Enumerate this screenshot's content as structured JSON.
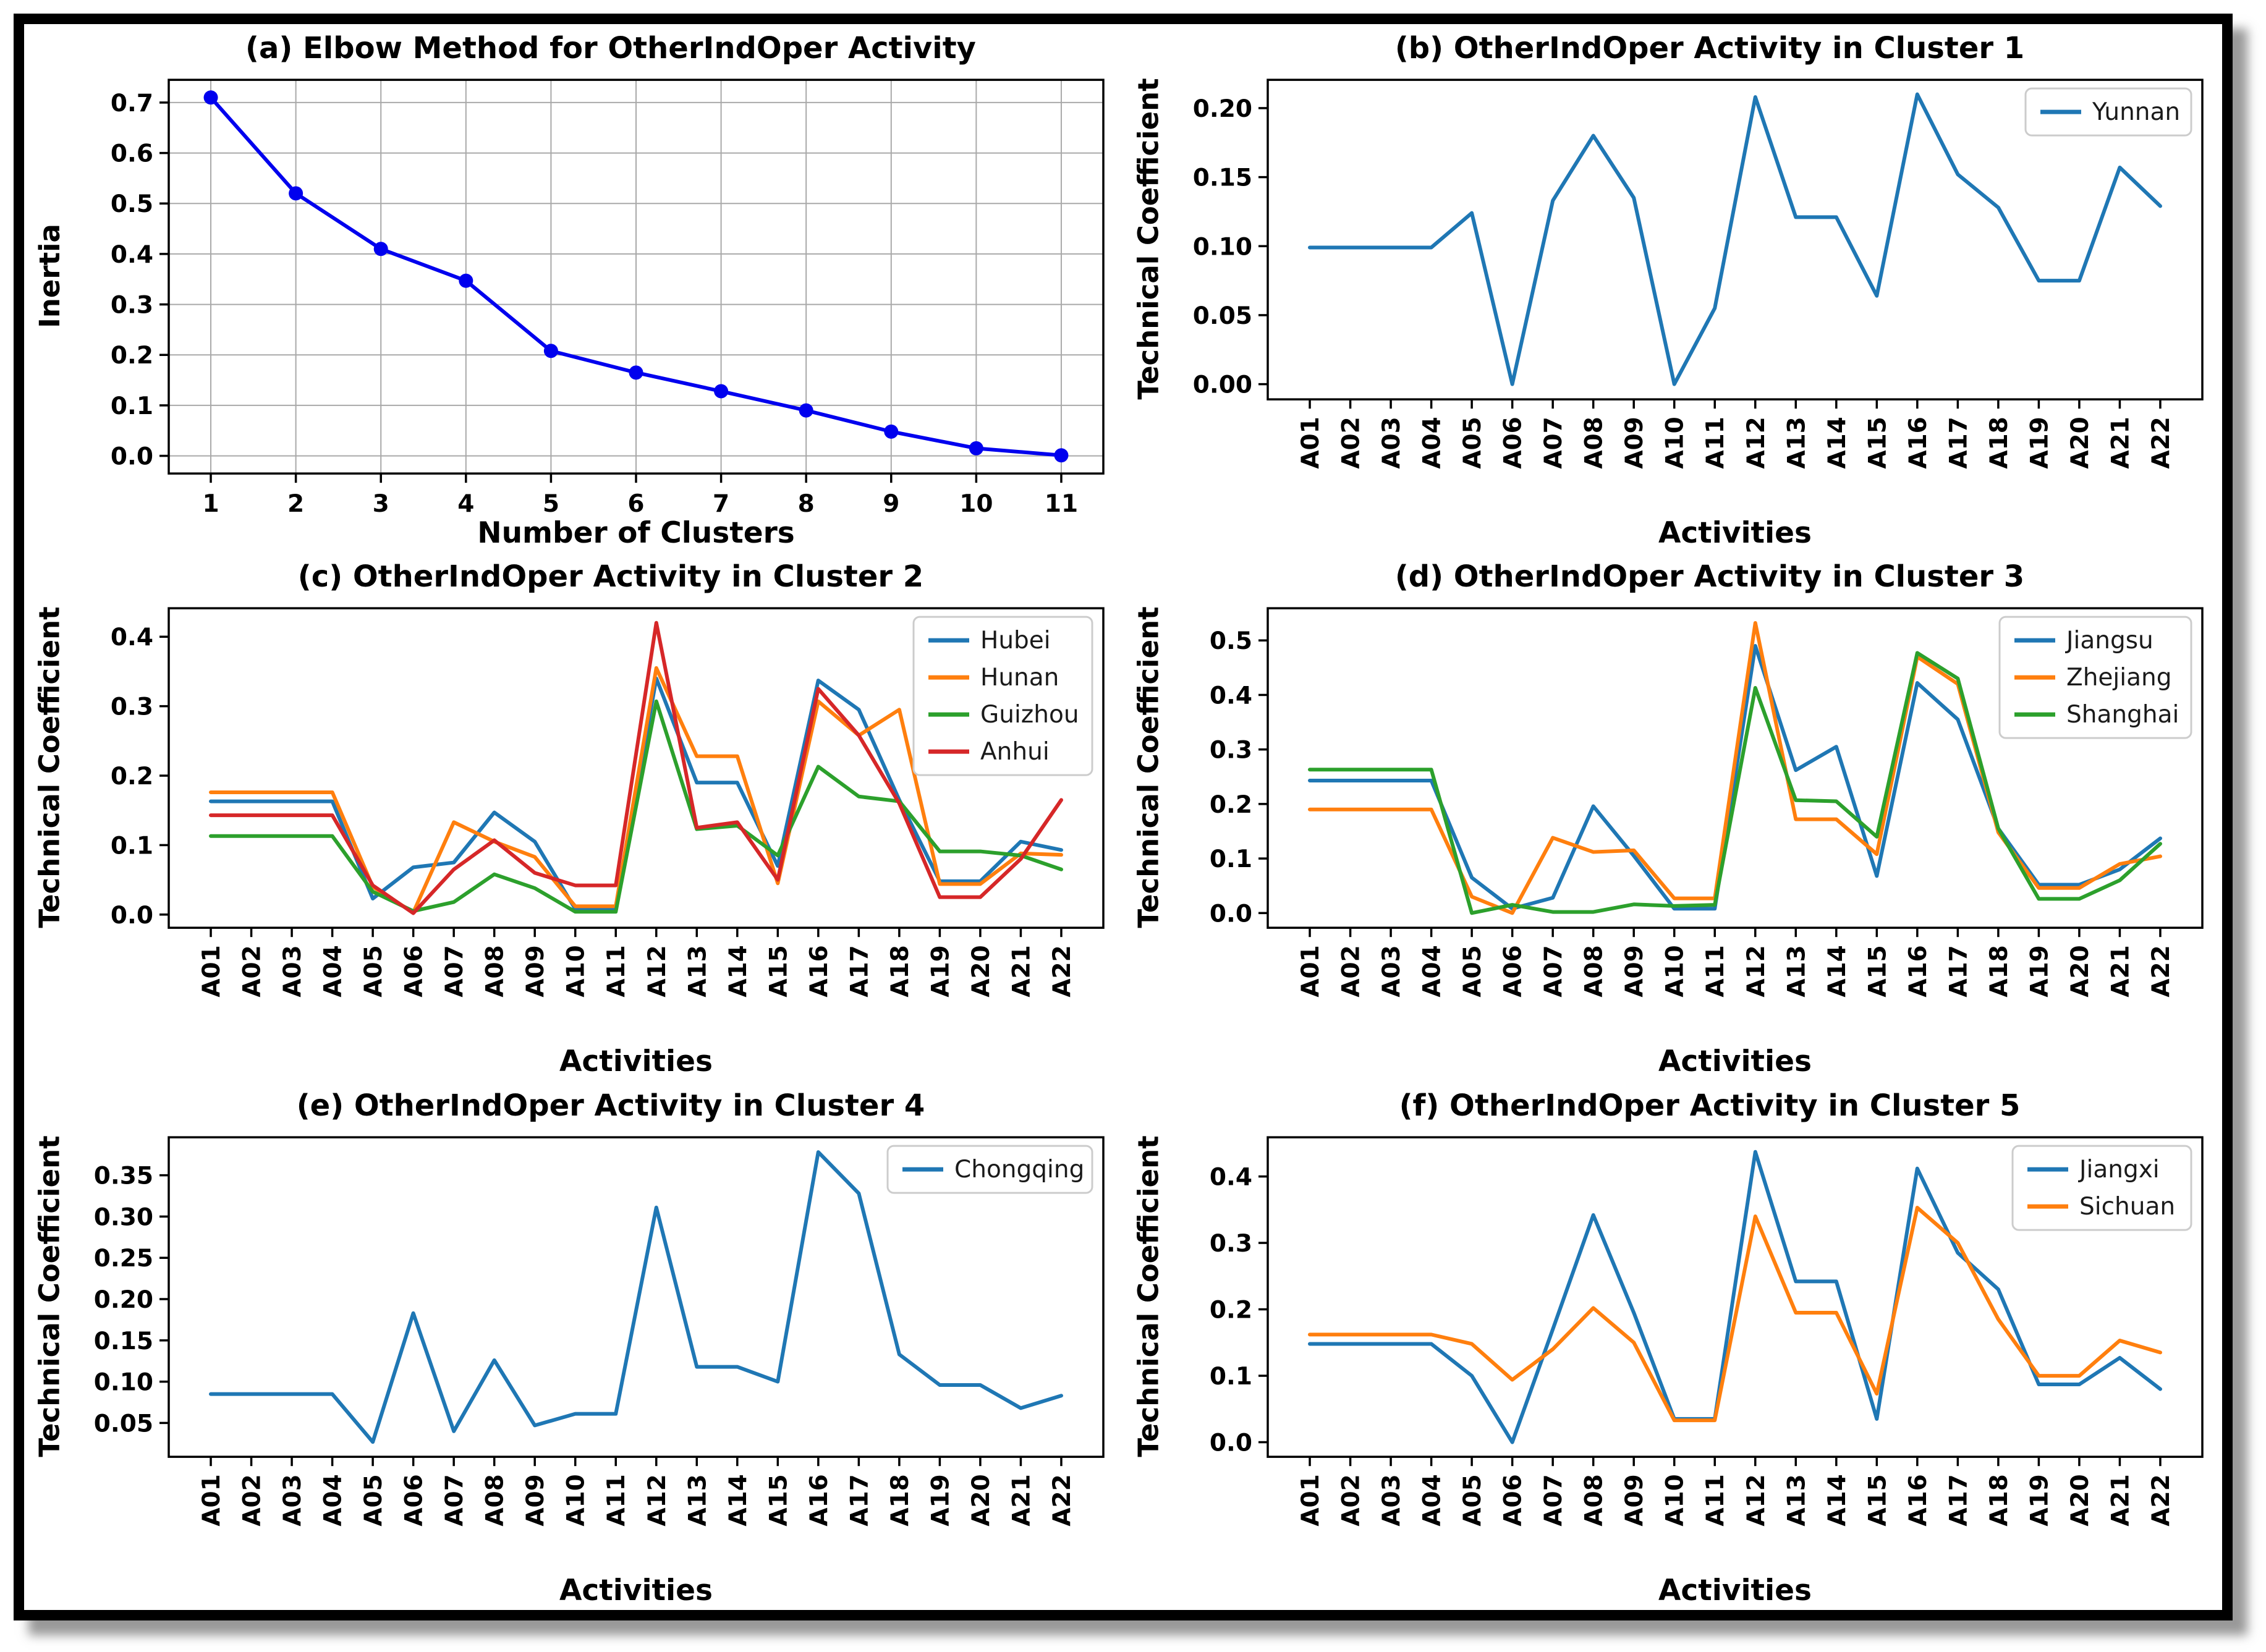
{
  "figure": {
    "description": "Six-panel cluster analysis figure",
    "border_color": "#000000",
    "background": "#ffffff"
  },
  "chart_data": [
    {
      "id": "a",
      "type": "line",
      "title": "(a) Elbow Method for OtherIndOper Activity",
      "xlabel": "Number of Clusters",
      "ylabel": "Inertia",
      "x": [
        "1",
        "2",
        "3",
        "4",
        "5",
        "6",
        "7",
        "8",
        "9",
        "10",
        "11"
      ],
      "xtick_rotate": false,
      "grid": true,
      "marker": true,
      "legend": false,
      "ylim": [
        -0.035,
        0.745
      ],
      "yticks": [
        0.0,
        0.1,
        0.2,
        0.3,
        0.4,
        0.5,
        0.6,
        0.7
      ],
      "ytick_labels": [
        "0.0",
        "0.1",
        "0.2",
        "0.3",
        "0.4",
        "0.5",
        "0.6",
        "0.7"
      ],
      "series": [
        {
          "name": "Inertia",
          "color": "#0000ee",
          "values": [
            0.71,
            0.52,
            0.41,
            0.347,
            0.208,
            0.165,
            0.128,
            0.09,
            0.048,
            0.015,
            0.001
          ]
        }
      ]
    },
    {
      "id": "b",
      "type": "line",
      "title": "(b) OtherIndOper Activity in Cluster 1",
      "xlabel": "Activities",
      "ylabel": "Technical Coefficient",
      "x": [
        "A01",
        "A02",
        "A03",
        "A04",
        "A05",
        "A06",
        "A07",
        "A08",
        "A09",
        "A10",
        "A11",
        "A12",
        "A13",
        "A14",
        "A15",
        "A16",
        "A17",
        "A18",
        "A19",
        "A20",
        "A21",
        "A22"
      ],
      "xtick_rotate": true,
      "grid": false,
      "marker": false,
      "legend": true,
      "ylim": [
        -0.011,
        0.2205
      ],
      "yticks": [
        0.0,
        0.05,
        0.1,
        0.15,
        0.2
      ],
      "ytick_labels": [
        "0.00",
        "0.05",
        "0.10",
        "0.15",
        "0.20"
      ],
      "series": [
        {
          "name": "Yunnan",
          "color": "#1f77b4",
          "values": [
            0.099,
            0.099,
            0.099,
            0.099,
            0.124,
            0.0,
            0.133,
            0.18,
            0.135,
            0.0,
            0.055,
            0.208,
            0.121,
            0.121,
            0.064,
            0.21,
            0.152,
            0.128,
            0.075,
            0.075,
            0.157,
            0.129
          ]
        }
      ]
    },
    {
      "id": "c",
      "type": "line",
      "title": "(c) OtherIndOper Activity in Cluster 2",
      "xlabel": "Activities",
      "ylabel": "Technical Coefficient",
      "x": [
        "A01",
        "A02",
        "A03",
        "A04",
        "A05",
        "A06",
        "A07",
        "A08",
        "A09",
        "A10",
        "A11",
        "A12",
        "A13",
        "A14",
        "A15",
        "A16",
        "A17",
        "A18",
        "A19",
        "A20",
        "A21",
        "A22"
      ],
      "xtick_rotate": true,
      "grid": false,
      "marker": false,
      "legend": true,
      "ylim": [
        -0.019,
        0.441
      ],
      "yticks": [
        0.0,
        0.1,
        0.2,
        0.3,
        0.4
      ],
      "ytick_labels": [
        "0.0",
        "0.1",
        "0.2",
        "0.3",
        "0.4"
      ],
      "series": [
        {
          "name": "Hubei",
          "color": "#1f77b4",
          "values": [
            0.163,
            0.163,
            0.163,
            0.163,
            0.023,
            0.068,
            0.075,
            0.147,
            0.105,
            0.008,
            0.008,
            0.34,
            0.19,
            0.19,
            0.07,
            0.337,
            0.295,
            0.165,
            0.048,
            0.048,
            0.105,
            0.093
          ]
        },
        {
          "name": "Hunan",
          "color": "#ff7f0e",
          "values": [
            0.176,
            0.176,
            0.176,
            0.176,
            0.04,
            0.003,
            0.133,
            0.105,
            0.083,
            0.012,
            0.012,
            0.355,
            0.228,
            0.228,
            0.045,
            0.307,
            0.258,
            0.295,
            0.044,
            0.044,
            0.088,
            0.086
          ]
        },
        {
          "name": "Guizhou",
          "color": "#2ca02c",
          "values": [
            0.113,
            0.113,
            0.113,
            0.113,
            0.033,
            0.005,
            0.018,
            0.058,
            0.038,
            0.004,
            0.004,
            0.307,
            0.123,
            0.128,
            0.085,
            0.213,
            0.17,
            0.163,
            0.091,
            0.091,
            0.085,
            0.065
          ]
        },
        {
          "name": "Anhui",
          "color": "#d62728",
          "values": [
            0.143,
            0.143,
            0.143,
            0.143,
            0.042,
            0.002,
            0.065,
            0.107,
            0.06,
            0.042,
            0.042,
            0.42,
            0.125,
            0.133,
            0.05,
            0.325,
            0.258,
            0.16,
            0.025,
            0.025,
            0.08,
            0.165
          ]
        }
      ]
    },
    {
      "id": "d",
      "type": "line",
      "title": "(d) OtherIndOper Activity in Cluster 3",
      "xlabel": "Activities",
      "ylabel": "Technical Coefficient",
      "x": [
        "A01",
        "A02",
        "A03",
        "A04",
        "A05",
        "A06",
        "A07",
        "A08",
        "A09",
        "A10",
        "A11",
        "A12",
        "A13",
        "A14",
        "A15",
        "A16",
        "A17",
        "A18",
        "A19",
        "A20",
        "A21",
        "A22"
      ],
      "xtick_rotate": true,
      "grid": false,
      "marker": false,
      "legend": true,
      "ylim": [
        -0.027,
        0.559
      ],
      "yticks": [
        0.0,
        0.1,
        0.2,
        0.3,
        0.4,
        0.5
      ],
      "ytick_labels": [
        "0.0",
        "0.1",
        "0.2",
        "0.3",
        "0.4",
        "0.5"
      ],
      "series": [
        {
          "name": "Jiangsu",
          "color": "#1f77b4",
          "values": [
            0.243,
            0.243,
            0.243,
            0.243,
            0.065,
            0.008,
            0.028,
            0.196,
            0.105,
            0.008,
            0.008,
            0.49,
            0.262,
            0.305,
            0.068,
            0.422,
            0.355,
            0.155,
            0.052,
            0.052,
            0.08,
            0.137
          ]
        },
        {
          "name": "Zhejiang",
          "color": "#ff7f0e",
          "values": [
            0.19,
            0.19,
            0.19,
            0.19,
            0.03,
            0.0,
            0.138,
            0.112,
            0.115,
            0.027,
            0.027,
            0.532,
            0.172,
            0.172,
            0.108,
            0.47,
            0.42,
            0.148,
            0.046,
            0.046,
            0.09,
            0.104
          ]
        },
        {
          "name": "Shanghai",
          "color": "#2ca02c",
          "values": [
            0.263,
            0.263,
            0.263,
            0.263,
            0.0,
            0.015,
            0.002,
            0.002,
            0.016,
            0.013,
            0.015,
            0.413,
            0.207,
            0.205,
            0.14,
            0.477,
            0.43,
            0.155,
            0.026,
            0.026,
            0.06,
            0.127
          ]
        }
      ]
    },
    {
      "id": "e",
      "type": "line",
      "title": "(e) OtherIndOper Activity in Cluster 4",
      "xlabel": "Activities",
      "ylabel": "Technical Coefficient",
      "x": [
        "A01",
        "A02",
        "A03",
        "A04",
        "A05",
        "A06",
        "A07",
        "A08",
        "A09",
        "A10",
        "A11",
        "A12",
        "A13",
        "A14",
        "A15",
        "A16",
        "A17",
        "A18",
        "A19",
        "A20",
        "A21",
        "A22"
      ],
      "xtick_rotate": true,
      "grid": false,
      "marker": false,
      "legend": true,
      "ylim": [
        0.009,
        0.396
      ],
      "yticks": [
        0.05,
        0.1,
        0.15,
        0.2,
        0.25,
        0.3,
        0.35
      ],
      "ytick_labels": [
        "0.05",
        "0.10",
        "0.15",
        "0.20",
        "0.25",
        "0.30",
        "0.35"
      ],
      "series": [
        {
          "name": "Chongqing",
          "color": "#1f77b4",
          "values": [
            0.085,
            0.085,
            0.085,
            0.085,
            0.027,
            0.183,
            0.04,
            0.126,
            0.047,
            0.061,
            0.061,
            0.311,
            0.118,
            0.118,
            0.1,
            0.378,
            0.328,
            0.133,
            0.096,
            0.096,
            0.068,
            0.083
          ]
        }
      ]
    },
    {
      "id": "f",
      "type": "line",
      "title": "(f) OtherIndOper Activity in Cluster 5",
      "xlabel": "Activities",
      "ylabel": "Technical Coefficient",
      "x": [
        "A01",
        "A02",
        "A03",
        "A04",
        "A05",
        "A06",
        "A07",
        "A08",
        "A09",
        "A10",
        "A11",
        "A12",
        "A13",
        "A14",
        "A15",
        "A16",
        "A17",
        "A18",
        "A19",
        "A20",
        "A21",
        "A22"
      ],
      "xtick_rotate": true,
      "grid": false,
      "marker": false,
      "legend": true,
      "ylim": [
        -0.022,
        0.459
      ],
      "yticks": [
        0.0,
        0.1,
        0.2,
        0.3,
        0.4
      ],
      "ytick_labels": [
        "0.0",
        "0.1",
        "0.2",
        "0.3",
        "0.4"
      ],
      "series": [
        {
          "name": "Jiangxi",
          "color": "#1f77b4",
          "values": [
            0.148,
            0.148,
            0.148,
            0.148,
            0.1,
            0.0,
            0.17,
            0.342,
            0.195,
            0.035,
            0.035,
            0.437,
            0.242,
            0.242,
            0.035,
            0.412,
            0.285,
            0.23,
            0.087,
            0.087,
            0.127,
            0.08
          ]
        },
        {
          "name": "Sichuan",
          "color": "#ff7f0e",
          "values": [
            0.162,
            0.162,
            0.162,
            0.162,
            0.148,
            0.094,
            0.14,
            0.202,
            0.15,
            0.033,
            0.033,
            0.34,
            0.195,
            0.195,
            0.073,
            0.353,
            0.3,
            0.185,
            0.1,
            0.1,
            0.153,
            0.135
          ]
        }
      ]
    }
  ]
}
